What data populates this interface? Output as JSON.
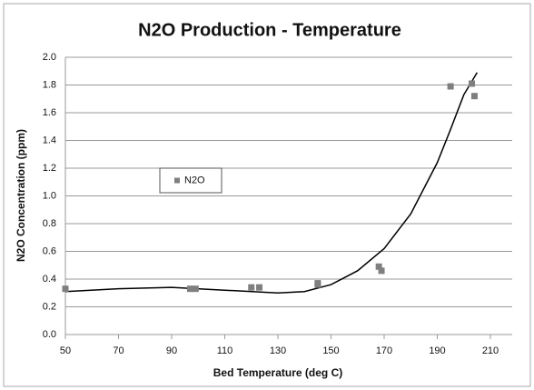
{
  "chart_data": {
    "type": "scatter",
    "title": "N2O Production - Temperature",
    "x_label": "Bed Temperature (deg C)",
    "y_label": "N2O Concentration (ppm)",
    "series": [
      {
        "name": "N2O",
        "color": "#7f7f7f",
        "x": [
          50,
          97,
          99,
          120,
          123,
          145,
          145,
          168,
          169,
          195,
          203,
          204
        ],
        "values": [
          0.33,
          0.33,
          0.33,
          0.34,
          0.34,
          0.37,
          0.36,
          0.49,
          0.46,
          1.79,
          1.81,
          1.72
        ]
      }
    ],
    "trendline": {
      "color": "#000000",
      "x": [
        50,
        70,
        90,
        110,
        130,
        140,
        150,
        160,
        170,
        180,
        190,
        195,
        200,
        205
      ],
      "values": [
        0.31,
        0.33,
        0.34,
        0.32,
        0.3,
        0.31,
        0.36,
        0.46,
        0.62,
        0.87,
        1.24,
        1.48,
        1.73,
        1.89
      ]
    },
    "xlim": [
      50,
      210
    ],
    "xticks": [
      50,
      70,
      90,
      110,
      130,
      150,
      170,
      190,
      210
    ],
    "ylim": [
      0,
      2
    ],
    "yticks": [
      {
        "value": 0,
        "label": "0.0"
      },
      {
        "value": 0.2,
        "label": "0.2"
      },
      {
        "value": 0.4,
        "label": "0.4"
      },
      {
        "value": 0.6,
        "label": "0.6"
      },
      {
        "value": 0.8,
        "label": "0.8"
      },
      {
        "value": 1,
        "label": "1.0"
      },
      {
        "value": 1.2,
        "label": "1.2"
      },
      {
        "value": 1.4,
        "label": "1.4"
      },
      {
        "value": 1.6,
        "label": "1.6"
      },
      {
        "value": 1.8,
        "label": "1.8"
      },
      {
        "value": 2,
        "label": "2.0"
      }
    ],
    "grid": true,
    "legend": "left"
  }
}
